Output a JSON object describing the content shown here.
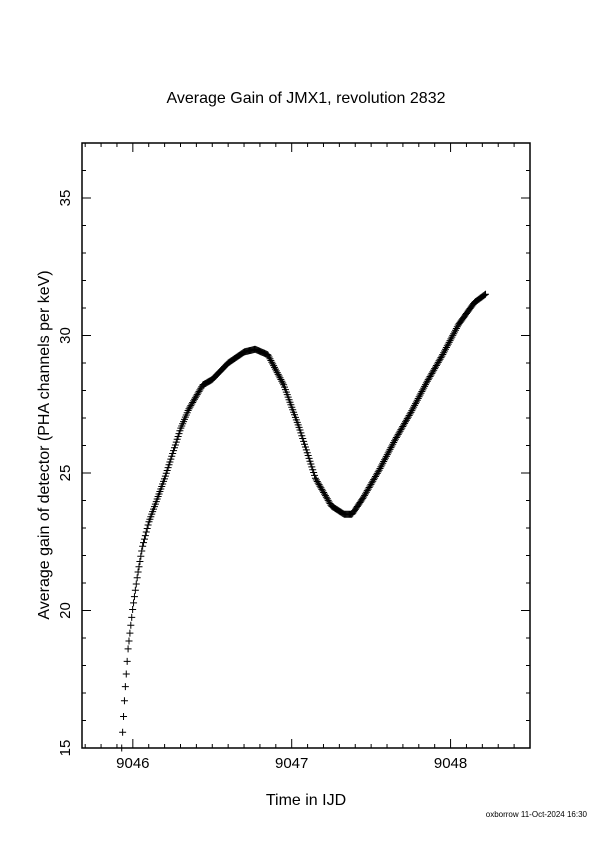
{
  "footer": {
    "text": "oxborrow 11-Oct-2024 16:30"
  },
  "chart_data": {
    "type": "scatter",
    "marker": "plus",
    "title": "Average Gain of JMX1, revolution 2832",
    "xlabel": "Time in IJD",
    "ylabel": "Average gain of detector (PHA channels per keV)",
    "xlim": [
      9045.68,
      9048.5
    ],
    "ylim": [
      15,
      37
    ],
    "xticks": [
      9046,
      9047,
      9048
    ],
    "yticks": [
      15,
      20,
      25,
      30,
      35
    ],
    "grid": false,
    "legend": "none",
    "series": [
      {
        "x": [
          9045.93,
          9045.95,
          9045.97,
          9046.0,
          9046.03,
          9046.06,
          9046.1,
          9046.15,
          9046.2,
          9046.25,
          9046.3,
          9046.35,
          9046.4,
          9046.44,
          9046.5,
          9046.6,
          9046.7,
          9046.77,
          9046.85,
          9046.95,
          9047.05,
          9047.15,
          9047.25,
          9047.33,
          9047.38,
          9047.45,
          9047.55,
          9047.65,
          9047.75,
          9047.85,
          9047.95,
          9048.05,
          9048.15,
          9048.22
        ],
        "y": [
          15.0,
          17.0,
          18.6,
          20.1,
          21.3,
          22.3,
          23.2,
          24.0,
          24.8,
          25.7,
          26.6,
          27.3,
          27.8,
          28.2,
          28.4,
          29.0,
          29.4,
          29.5,
          29.3,
          28.2,
          26.6,
          24.8,
          23.8,
          23.5,
          23.5,
          24.1,
          25.1,
          26.2,
          27.2,
          28.3,
          29.3,
          30.4,
          31.2,
          31.5
        ]
      }
    ]
  }
}
